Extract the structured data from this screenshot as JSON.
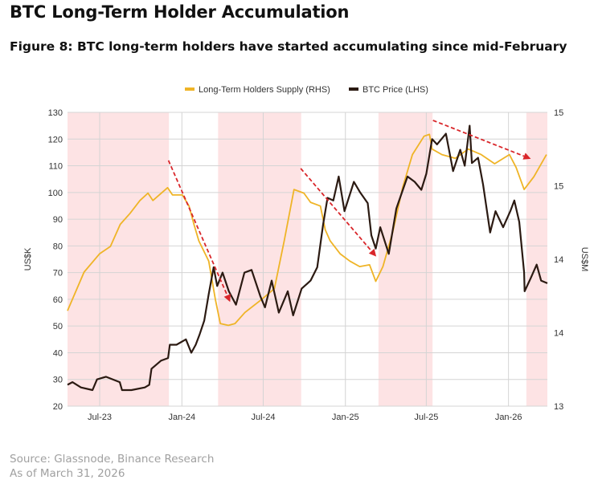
{
  "header": {
    "title": "BTC Long-Term Holder Accumulation",
    "subtitle": "Figure 8: BTC long-term holders have started accumulating since mid-February"
  },
  "footer": {
    "source": "Source: Glassnode, Binance Research",
    "as_of": "As of March 31, 2026"
  },
  "chart_data": {
    "type": "line",
    "title": "",
    "xlabel": "",
    "ylabel": "US$K",
    "ylabel_right": "US$M",
    "x_range": [
      "2023-04-20",
      "2026-03-29"
    ],
    "x_ticks": [
      {
        "date": "2023-07-01",
        "label": "Jul-23"
      },
      {
        "date": "2024-01-01",
        "label": "Jan-24"
      },
      {
        "date": "2024-07-01",
        "label": "Jul-24"
      },
      {
        "date": "2025-01-01",
        "label": "Jan-25"
      },
      {
        "date": "2025-07-01",
        "label": "Jul-25"
      },
      {
        "date": "2026-01-01",
        "label": "Jan-26"
      }
    ],
    "ylim": [
      20,
      130
    ],
    "y_ticks": [
      20,
      30,
      40,
      50,
      60,
      70,
      80,
      90,
      100,
      110,
      120,
      130
    ],
    "ylim_right": [
      13.4,
      15.0
    ],
    "y_ticks_right": [
      {
        "value": 13.4,
        "label": "13"
      },
      {
        "value": 13.8,
        "label": "14"
      },
      {
        "value": 14.2,
        "label": "14"
      },
      {
        "value": 14.6,
        "label": "15"
      },
      {
        "value": 15.0,
        "label": "15"
      }
    ],
    "grid": true,
    "legend_position": "top-center",
    "shaded_periods": [
      [
        "2023-04-20",
        "2023-12-03"
      ],
      [
        "2024-03-22",
        "2024-09-24"
      ],
      [
        "2025-03-16",
        "2025-07-15"
      ],
      [
        "2026-02-10",
        "2026-03-29"
      ]
    ],
    "shade_color": "#fde3e4",
    "annotations": [
      {
        "type": "dashed-arrow",
        "from": [
          "2023-12-02",
          112
        ],
        "to": [
          "2024-04-18",
          59
        ]
      },
      {
        "type": "dashed-arrow",
        "from": [
          "2024-09-23",
          109
        ],
        "to": [
          "2025-03-11",
          76
        ]
      },
      {
        "type": "dashed-arrow",
        "from": [
          "2025-07-16",
          127
        ],
        "to": [
          "2026-02-20",
          112.6
        ]
      }
    ],
    "arrow_color": "#d9262a",
    "series": [
      {
        "name": "Long-Term Holders Supply (RHS)",
        "axis": "right",
        "color": "#efb427",
        "points": [
          [
            "2023-04-20",
            13.92
          ],
          [
            "2023-05-27",
            14.13
          ],
          [
            "2023-07-01",
            14.23
          ],
          [
            "2023-07-25",
            14.27
          ],
          [
            "2023-08-16",
            14.39
          ],
          [
            "2023-09-07",
            14.45
          ],
          [
            "2023-09-29",
            14.52
          ],
          [
            "2023-10-17",
            14.56
          ],
          [
            "2023-10-28",
            14.52
          ],
          [
            "2023-11-30",
            14.59
          ],
          [
            "2023-12-11",
            14.55
          ],
          [
            "2024-01-02",
            14.55
          ],
          [
            "2024-01-17",
            14.49
          ],
          [
            "2024-01-28",
            14.39
          ],
          [
            "2024-02-08",
            14.3
          ],
          [
            "2024-03-01",
            14.19
          ],
          [
            "2024-03-16",
            13.98
          ],
          [
            "2024-03-27",
            13.85
          ],
          [
            "2024-04-14",
            13.84
          ],
          [
            "2024-04-29",
            13.85
          ],
          [
            "2024-05-21",
            13.91
          ],
          [
            "2024-06-27",
            13.98
          ],
          [
            "2024-07-26",
            14.04
          ],
          [
            "2024-08-17",
            14.3
          ],
          [
            "2024-09-08",
            14.58
          ],
          [
            "2024-09-30",
            14.56
          ],
          [
            "2024-10-15",
            14.51
          ],
          [
            "2024-11-06",
            14.49
          ],
          [
            "2024-11-17",
            14.36
          ],
          [
            "2024-11-28",
            14.3
          ],
          [
            "2024-12-20",
            14.23
          ],
          [
            "2025-01-11",
            14.19
          ],
          [
            "2025-02-02",
            14.16
          ],
          [
            "2025-02-24",
            14.17
          ],
          [
            "2025-03-10",
            14.08
          ],
          [
            "2025-03-26",
            14.16
          ],
          [
            "2025-04-17",
            14.35
          ],
          [
            "2025-05-09",
            14.59
          ],
          [
            "2025-05-31",
            14.77
          ],
          [
            "2025-06-26",
            14.87
          ],
          [
            "2025-07-08",
            14.88
          ],
          [
            "2025-07-14",
            14.8
          ],
          [
            "2025-08-05",
            14.77
          ],
          [
            "2025-09-04",
            14.75
          ],
          [
            "2025-10-03",
            14.8
          ],
          [
            "2025-11-01",
            14.77
          ],
          [
            "2025-12-01",
            14.72
          ],
          [
            "2026-01-03",
            14.77
          ],
          [
            "2026-01-18",
            14.7
          ],
          [
            "2026-02-05",
            14.58
          ],
          [
            "2026-02-27",
            14.65
          ],
          [
            "2026-03-27",
            14.77
          ]
        ]
      },
      {
        "name": "BTC Price (LHS)",
        "axis": "left",
        "color": "#2b1a12",
        "points": [
          [
            "2023-04-20",
            28
          ],
          [
            "2023-05-01",
            29
          ],
          [
            "2023-05-20",
            27
          ],
          [
            "2023-06-15",
            26
          ],
          [
            "2023-06-25",
            30
          ],
          [
            "2023-07-15",
            31
          ],
          [
            "2023-08-15",
            29
          ],
          [
            "2023-08-20",
            26
          ],
          [
            "2023-09-10",
            26
          ],
          [
            "2023-10-10",
            27
          ],
          [
            "2023-10-20",
            28
          ],
          [
            "2023-10-25",
            34
          ],
          [
            "2023-11-15",
            37
          ],
          [
            "2023-12-01",
            38
          ],
          [
            "2023-12-05",
            43
          ],
          [
            "2023-12-20",
            43
          ],
          [
            "2024-01-10",
            45
          ],
          [
            "2024-01-22",
            40
          ],
          [
            "2024-02-01",
            43
          ],
          [
            "2024-02-10",
            47
          ],
          [
            "2024-02-20",
            52
          ],
          [
            "2024-03-01",
            62
          ],
          [
            "2024-03-12",
            72
          ],
          [
            "2024-03-20",
            65
          ],
          [
            "2024-04-01",
            70
          ],
          [
            "2024-04-15",
            63
          ],
          [
            "2024-05-01",
            58
          ],
          [
            "2024-05-20",
            70
          ],
          [
            "2024-06-05",
            71
          ],
          [
            "2024-06-25",
            61
          ],
          [
            "2024-07-05",
            57
          ],
          [
            "2024-07-20",
            67
          ],
          [
            "2024-08-05",
            55
          ],
          [
            "2024-08-25",
            63
          ],
          [
            "2024-09-06",
            54
          ],
          [
            "2024-09-25",
            64
          ],
          [
            "2024-10-15",
            67
          ],
          [
            "2024-10-30",
            72
          ],
          [
            "2024-11-12",
            88
          ],
          [
            "2024-11-22",
            98
          ],
          [
            "2024-12-05",
            97
          ],
          [
            "2024-12-17",
            106
          ],
          [
            "2024-12-30",
            93
          ],
          [
            "2025-01-20",
            104
          ],
          [
            "2025-02-03",
            100
          ],
          [
            "2025-02-20",
            96
          ],
          [
            "2025-02-28",
            84
          ],
          [
            "2025-03-10",
            79
          ],
          [
            "2025-03-20",
            87
          ],
          [
            "2025-04-08",
            77
          ],
          [
            "2025-04-25",
            94
          ],
          [
            "2025-05-20",
            106
          ],
          [
            "2025-06-05",
            104
          ],
          [
            "2025-06-20",
            101
          ],
          [
            "2025-07-01",
            107
          ],
          [
            "2025-07-14",
            120
          ],
          [
            "2025-07-25",
            118
          ],
          [
            "2025-08-14",
            122
          ],
          [
            "2025-08-30",
            108
          ],
          [
            "2025-09-15",
            116
          ],
          [
            "2025-09-25",
            110
          ],
          [
            "2025-10-06",
            125
          ],
          [
            "2025-10-11",
            111
          ],
          [
            "2025-10-25",
            113
          ],
          [
            "2025-11-05",
            103
          ],
          [
            "2025-11-21",
            85
          ],
          [
            "2025-12-03",
            93
          ],
          [
            "2025-12-20",
            87
          ],
          [
            "2026-01-05",
            93
          ],
          [
            "2026-01-14",
            97
          ],
          [
            "2026-01-25",
            89
          ],
          [
            "2026-02-05",
            70
          ],
          [
            "2026-02-06",
            63
          ],
          [
            "2026-02-20",
            68
          ],
          [
            "2026-03-05",
            73
          ],
          [
            "2026-03-15",
            67
          ],
          [
            "2026-03-29",
            66
          ]
        ]
      }
    ]
  }
}
